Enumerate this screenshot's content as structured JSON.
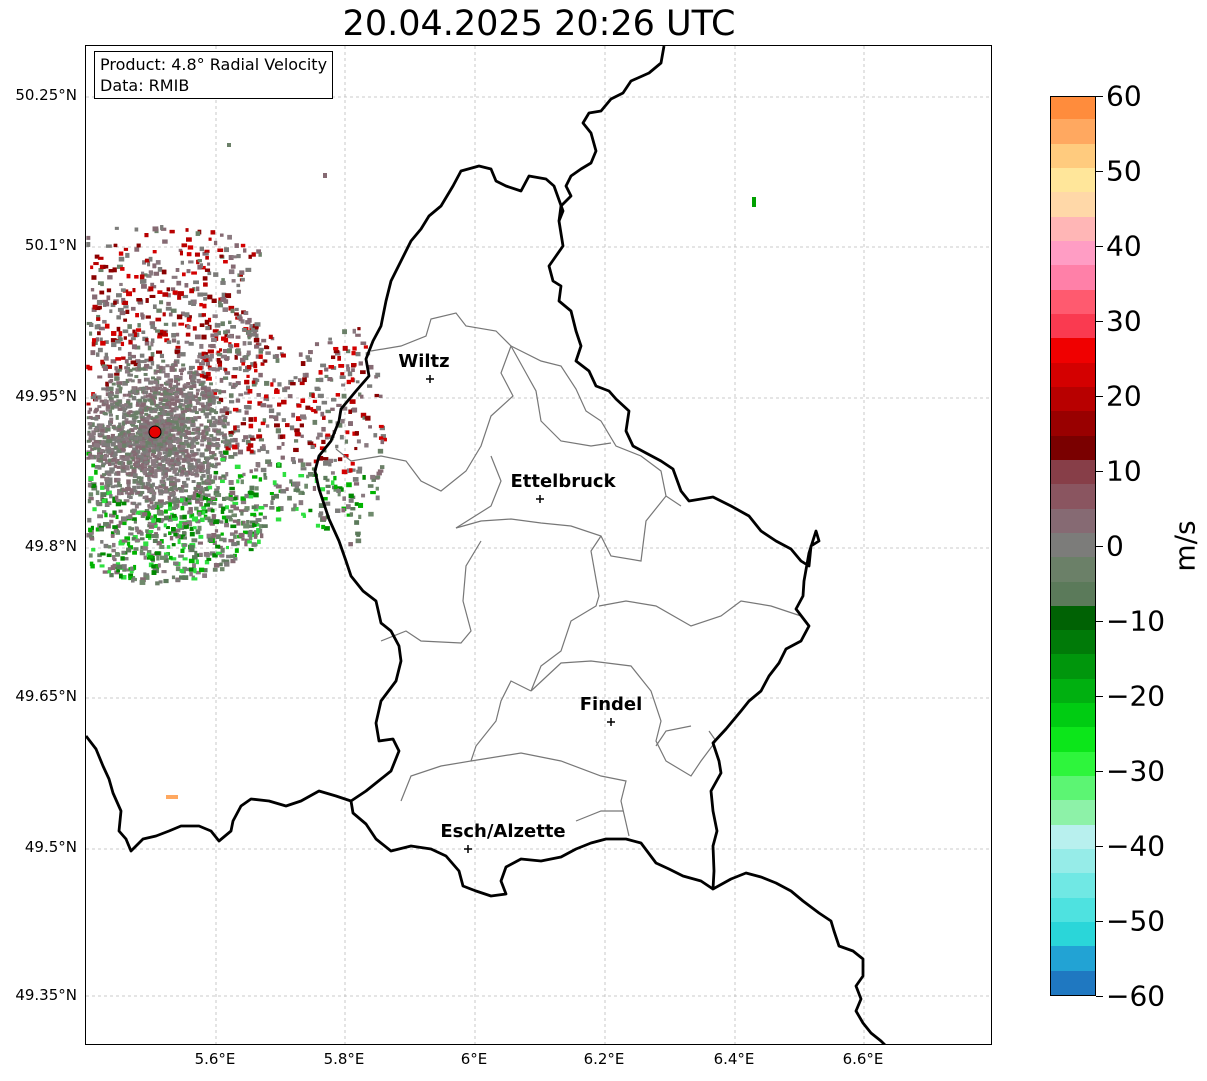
{
  "title": "20.04.2025 20:26 UTC",
  "info_box": {
    "product": "Product: 4.8° Radial Velocity",
    "source": "Data: RMIB"
  },
  "lat_labels": [
    "50.25°N",
    "50.1°N",
    "49.95°N",
    "49.8°N",
    "49.65°N",
    "49.5°N",
    "49.35°N"
  ],
  "lon_labels": [
    "5.6°E",
    "5.8°E",
    "6°E",
    "6.2°E",
    "6.4°E",
    "6.6°E"
  ],
  "cities": [
    {
      "name": "Wiltz"
    },
    {
      "name": "Ettelbruck"
    },
    {
      "name": "Findel"
    },
    {
      "name": "Esch/Alzette"
    }
  ],
  "colorbar": {
    "unit": "m/s",
    "ticks": [
      "60",
      "50",
      "40",
      "30",
      "20",
      "10",
      "0",
      "−10",
      "−20",
      "−30",
      "−40",
      "−50",
      "−60"
    ],
    "range": [
      -60,
      60
    ],
    "colors": [
      "#1f78c1",
      "#22a3d4",
      "#2ad6d9",
      "#4ee2e0",
      "#70e8e4",
      "#96ece8",
      "#b8f0ee",
      "#8df2a8",
      "#5cf573",
      "#2ef53c",
      "#0ce61a",
      "#00cc12",
      "#00b010",
      "#00960c",
      "#007a08",
      "#006204",
      "#5b7a5a",
      "#6b8068",
      "#7c7c7a",
      "#866a73",
      "#8a5560",
      "#873e48",
      "#7a0000",
      "#990000",
      "#b80000",
      "#d40000",
      "#f00000",
      "#fa3a50",
      "#ff5a6f",
      "#ff80a8",
      "#ff9dc4",
      "#ffb6b6",
      "#ffd8a8",
      "#ffe69a",
      "#ffcb7e",
      "#ffa860",
      "#ff8c3c"
    ]
  },
  "radar": {
    "site_color": "#e60000",
    "palette_toward": [
      "#00b400",
      "#2ee040",
      "#008a00",
      "#5b7a5a",
      "#6f8a6c"
    ],
    "palette_away": [
      "#b80000",
      "#8a0000",
      "#d40000",
      "#866a73",
      "#7c7c7a"
    ],
    "palette_zero": [
      "#7c7c7a",
      "#866a73",
      "#6b8068",
      "#8a7a80"
    ]
  }
}
